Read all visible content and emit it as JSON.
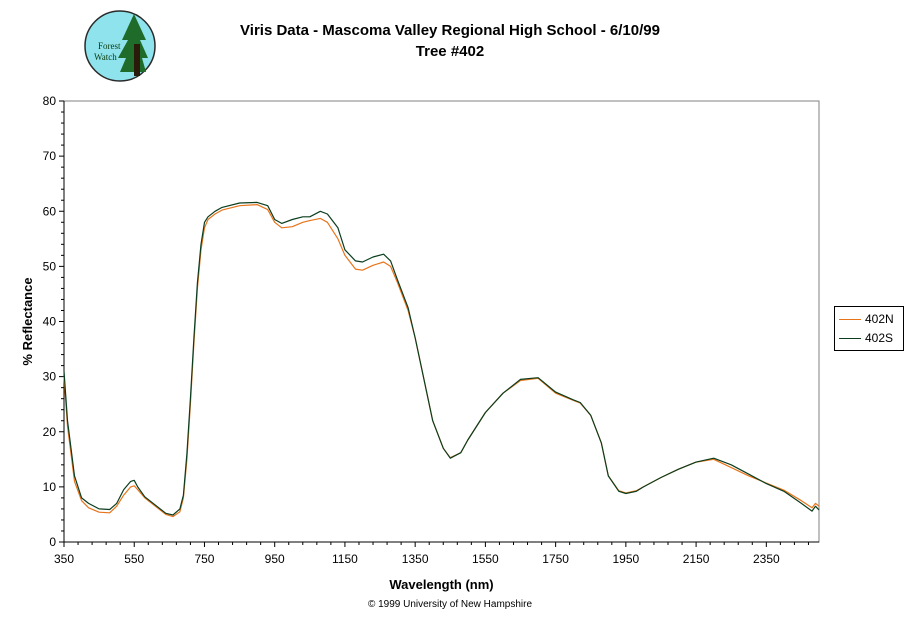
{
  "header": {
    "title_line1": "Viris Data - Mascoma Valley Regional High School - 6/10/99",
    "title_line2": "Tree #402"
  },
  "logo": {
    "text_line1": "Forest",
    "text_line2": "Watch"
  },
  "footer": {
    "copyright": "© 1999 University of New Hampshire"
  },
  "colors": {
    "series_402N": "#e8741a",
    "series_402S": "#0b3d1e",
    "logo_bg": "#8fe3ec",
    "tree": "#1f6b2a"
  },
  "chart_data": {
    "type": "line",
    "xlabel": "Wavelength (nm)",
    "ylabel": "% Reflectance",
    "xlim": [
      350,
      2500
    ],
    "ylim": [
      0,
      80
    ],
    "xticks": [
      350,
      550,
      750,
      950,
      1150,
      1350,
      1550,
      1750,
      1950,
      2150,
      2350
    ],
    "yticks": [
      0,
      10,
      20,
      30,
      40,
      50,
      60,
      70,
      80
    ],
    "grid": false,
    "legend_position": "right",
    "series": [
      {
        "name": "402N",
        "color": "#e8741a",
        "x": [
          350,
          360,
          380,
          400,
          420,
          450,
          480,
          500,
          520,
          540,
          550,
          560,
          580,
          600,
          620,
          640,
          660,
          680,
          690,
          700,
          710,
          720,
          730,
          740,
          750,
          760,
          780,
          800,
          850,
          900,
          930,
          950,
          970,
          1000,
          1030,
          1050,
          1080,
          1100,
          1130,
          1150,
          1180,
          1200,
          1230,
          1260,
          1280,
          1300,
          1330,
          1350,
          1380,
          1400,
          1430,
          1450,
          1480,
          1500,
          1550,
          1600,
          1650,
          1700,
          1750,
          1800,
          1820,
          1850,
          1880,
          1900,
          1930,
          1950,
          1980,
          2000,
          2050,
          2100,
          2150,
          2200,
          2250,
          2300,
          2350,
          2400,
          2450,
          2480,
          2490,
          2500
        ],
        "y": [
          30,
          21,
          11,
          7.5,
          6.2,
          5.4,
          5.3,
          6.5,
          8.5,
          10,
          10.2,
          9.5,
          8,
          7,
          6,
          5,
          4.6,
          5.5,
          8,
          15,
          25,
          36,
          46,
          53,
          57,
          58.5,
          59.5,
          60.2,
          61,
          61.2,
          60.3,
          58,
          57,
          57.2,
          58,
          58.3,
          58.7,
          58,
          55,
          52,
          49.5,
          49.3,
          50.2,
          50.8,
          50,
          47,
          42,
          37,
          28,
          22,
          17,
          15.3,
          16.2,
          18.5,
          23.5,
          27,
          29.3,
          29.7,
          27,
          25.7,
          25.2,
          23,
          18,
          12,
          9.3,
          8.9,
          9.3,
          10,
          11.7,
          13.2,
          14.5,
          15,
          13.5,
          12,
          10.7,
          9.4,
          7.5,
          6.2,
          7,
          6.5
        ]
      },
      {
        "name": "402S",
        "color": "#0b3d1e",
        "x": [
          350,
          360,
          380,
          400,
          420,
          450,
          480,
          500,
          520,
          540,
          550,
          560,
          580,
          600,
          620,
          640,
          660,
          680,
          690,
          700,
          710,
          720,
          730,
          740,
          750,
          760,
          780,
          800,
          850,
          900,
          930,
          950,
          970,
          1000,
          1030,
          1050,
          1080,
          1100,
          1130,
          1150,
          1180,
          1200,
          1230,
          1260,
          1280,
          1300,
          1330,
          1350,
          1380,
          1400,
          1430,
          1450,
          1480,
          1500,
          1550,
          1600,
          1650,
          1700,
          1750,
          1800,
          1820,
          1850,
          1880,
          1900,
          1930,
          1950,
          1980,
          2000,
          2050,
          2100,
          2150,
          2200,
          2250,
          2300,
          2350,
          2400,
          2450,
          2480,
          2490,
          2500
        ],
        "y": [
          31,
          22,
          12,
          8,
          7,
          6,
          5.9,
          7,
          9.5,
          11,
          11.2,
          10,
          8.2,
          7.2,
          6.2,
          5.2,
          4.9,
          6,
          8.5,
          16,
          26,
          37,
          47,
          54,
          58,
          59,
          60,
          60.7,
          61.5,
          61.6,
          61,
          58.5,
          57.8,
          58.5,
          59,
          59,
          60,
          59.5,
          57,
          53,
          51,
          50.8,
          51.7,
          52.2,
          51,
          47.5,
          42.5,
          37,
          28,
          22,
          17,
          15.2,
          16.2,
          18.5,
          23.5,
          27,
          29.5,
          29.8,
          27.2,
          25.8,
          25.3,
          23,
          18,
          12,
          9.2,
          8.8,
          9.2,
          10,
          11.7,
          13.2,
          14.5,
          15.2,
          14,
          12.3,
          10.6,
          9.2,
          7,
          5.6,
          6.5,
          5.8
        ]
      }
    ]
  }
}
